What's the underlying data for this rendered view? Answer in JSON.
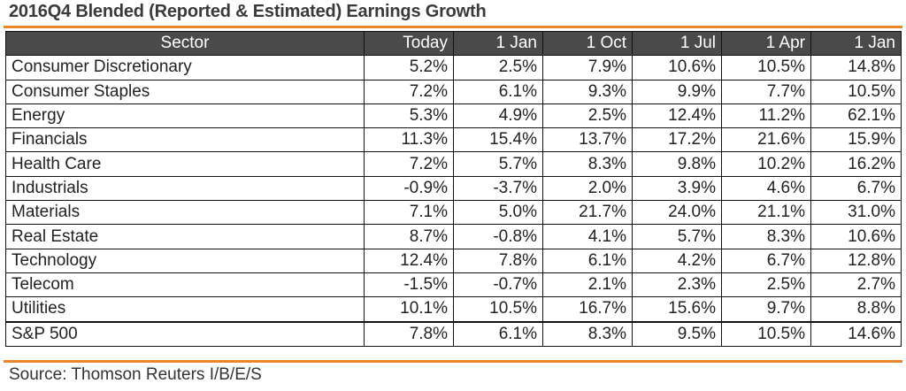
{
  "title": "2016Q4 Blended (Reported & Estimated) Earnings Growth",
  "source": "Source: Thomson Reuters I/B/E/S",
  "colors": {
    "accent_rule": "#e8862a",
    "header_bg": "#4a4a4a",
    "header_text": "#ffffff"
  },
  "chart_data": {
    "type": "table",
    "columns": [
      "Sector",
      "Today",
      "1 Jan",
      "1 Oct",
      "1 Jul",
      "1 Apr",
      "1 Jan"
    ],
    "rows": [
      [
        "Consumer Discretionary",
        "5.2%",
        "2.5%",
        "7.9%",
        "10.6%",
        "10.5%",
        "14.8%"
      ],
      [
        "Consumer Staples",
        "7.2%",
        "6.1%",
        "9.3%",
        "9.9%",
        "7.7%",
        "10.5%"
      ],
      [
        "Energy",
        "5.3%",
        "4.9%",
        "2.5%",
        "12.4%",
        "11.2%",
        "62.1%"
      ],
      [
        "Financials",
        "11.3%",
        "15.4%",
        "13.7%",
        "17.2%",
        "21.6%",
        "15.9%"
      ],
      [
        "Health Care",
        "7.2%",
        "5.7%",
        "8.3%",
        "9.8%",
        "10.2%",
        "16.2%"
      ],
      [
        "Industrials",
        "-0.9%",
        "-3.7%",
        "2.0%",
        "3.9%",
        "4.6%",
        "6.7%"
      ],
      [
        "Materials",
        "7.1%",
        "5.0%",
        "21.7%",
        "24.0%",
        "21.1%",
        "31.0%"
      ],
      [
        "Real Estate",
        "8.7%",
        "-0.8%",
        "4.1%",
        "5.7%",
        "8.3%",
        "10.6%"
      ],
      [
        "Technology",
        "12.4%",
        "7.8%",
        "6.1%",
        "4.2%",
        "6.7%",
        "12.8%"
      ],
      [
        "Telecom",
        "-1.5%",
        "-0.7%",
        "2.1%",
        "2.3%",
        "2.5%",
        "2.7%"
      ],
      [
        "Utilities",
        "10.1%",
        "10.5%",
        "16.7%",
        "15.6%",
        "9.7%",
        "8.8%"
      ]
    ],
    "total_row": [
      "S&P 500",
      "7.8%",
      "6.1%",
      "8.3%",
      "9.5%",
      "10.5%",
      "14.6%"
    ]
  }
}
